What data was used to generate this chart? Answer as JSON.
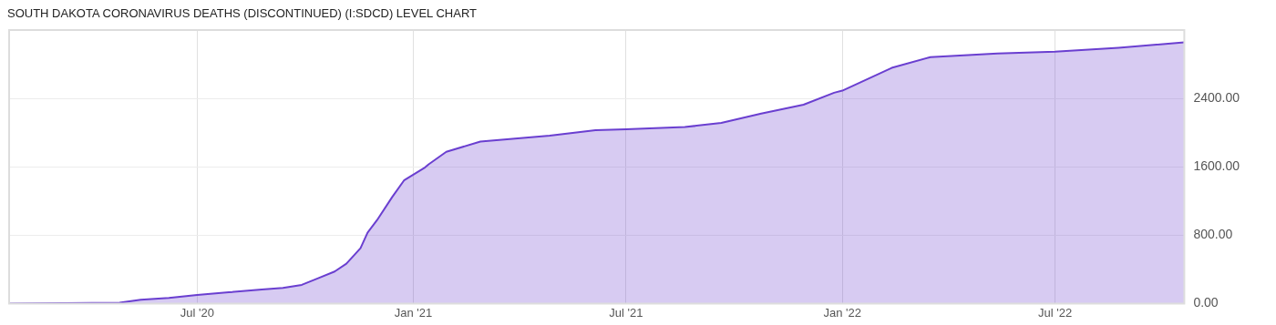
{
  "chart_data": {
    "type": "area",
    "title": "SOUTH DAKOTA CORONAVIRUS DEATHS (DISCONTINUED) (I:SDCD) LEVEL CHART",
    "x": [
      "2020-01-23",
      "2020-04-26",
      "2020-05-14",
      "2020-06-07",
      "2020-07-01",
      "2020-07-28",
      "2020-08-25",
      "2020-09-12",
      "2020-09-28",
      "2020-10-11",
      "2020-10-26",
      "2020-11-05",
      "2020-11-17",
      "2020-11-23",
      "2020-12-01",
      "2020-12-14",
      "2020-12-24",
      "2021-01-11",
      "2021-01-14",
      "2021-01-29",
      "2021-02-27",
      "2021-04-27",
      "2021-06-05",
      "2021-07-01",
      "2021-08-20",
      "2021-09-20",
      "2021-10-24",
      "2021-11-29",
      "2021-12-25",
      "2022-01-01",
      "2022-02-12",
      "2022-03-17",
      "2022-05-13",
      "2022-07-01",
      "2022-08-24",
      "2022-10-19"
    ],
    "series": [
      {
        "color": "#6a3fd0",
        "values": [
          0,
          10,
          44,
          65,
          101,
          131,
          164,
          182,
          218,
          291,
          374,
          466,
          647,
          829,
          974,
          1247,
          1440,
          1593,
          1629,
          1775,
          1895,
          1964,
          2029,
          2040,
          2065,
          2113,
          2222,
          2327,
          2466,
          2491,
          2757,
          2884,
          2927,
          2946,
          2993,
          3055
        ]
      }
    ],
    "xlim": [
      "2020-01-23",
      "2022-10-19"
    ],
    "xticks": [
      {
        "value": "2020-07-01",
        "label": "Jul '20"
      },
      {
        "value": "2021-01-01",
        "label": "Jan '21"
      },
      {
        "value": "2021-07-01",
        "label": "Jul '21"
      },
      {
        "value": "2022-01-01",
        "label": "Jan '22"
      },
      {
        "value": "2022-07-01",
        "label": "Jul '22"
      }
    ],
    "ylim": [
      0,
      3200
    ],
    "yticks": [
      {
        "value": 0,
        "label": "0.00"
      },
      {
        "value": 800,
        "label": "800.00"
      },
      {
        "value": 1600,
        "label": "1600.00"
      },
      {
        "value": 2400,
        "label": "2400.00"
      }
    ],
    "grid": true,
    "legend": false
  }
}
